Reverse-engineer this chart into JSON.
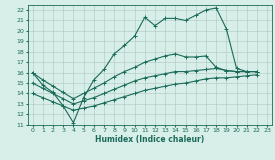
{
  "xlabel": "Humidex (Indice chaleur)",
  "xlim": [
    -0.5,
    23.5
  ],
  "ylim": [
    11,
    22.5
  ],
  "xticks": [
    0,
    1,
    2,
    3,
    4,
    5,
    6,
    7,
    8,
    9,
    10,
    11,
    12,
    13,
    14,
    15,
    16,
    17,
    18,
    19,
    20,
    21,
    22,
    23
  ],
  "yticks": [
    11,
    12,
    13,
    14,
    15,
    16,
    17,
    18,
    19,
    20,
    21,
    22
  ],
  "line_color": "#1a6b5a",
  "bg_color": "#d8eee8",
  "grid_color": "#adc8c0",
  "line1_x": [
    0,
    1,
    2,
    3,
    4,
    5,
    6,
    7,
    8,
    9,
    10,
    11,
    12,
    13,
    14,
    15,
    16,
    17,
    18,
    19,
    20,
    21,
    22
  ],
  "line1_y": [
    16.0,
    14.8,
    14.1,
    12.8,
    11.2,
    13.6,
    15.3,
    16.3,
    17.8,
    18.6,
    19.5,
    21.3,
    20.5,
    21.2,
    21.2,
    21.0,
    21.5,
    22.0,
    22.2,
    20.2,
    16.4,
    16.1,
    16.1
  ],
  "line2_x": [
    0,
    1,
    2,
    3,
    4,
    5,
    6,
    7,
    8,
    9,
    10,
    11,
    12,
    13,
    14,
    15,
    16,
    17,
    18,
    19,
    20,
    21,
    22
  ],
  "line2_y": [
    16.0,
    15.3,
    14.7,
    14.1,
    13.5,
    14.0,
    14.5,
    15.0,
    15.6,
    16.1,
    16.5,
    17.0,
    17.3,
    17.6,
    17.8,
    17.5,
    17.5,
    17.6,
    16.5,
    16.2,
    16.1,
    16.1,
    16.1
  ],
  "line3_x": [
    0,
    1,
    2,
    3,
    4,
    5,
    6,
    7,
    8,
    9,
    10,
    11,
    12,
    13,
    14,
    15,
    16,
    17,
    18,
    19,
    20,
    21,
    22
  ],
  "line3_y": [
    15.0,
    14.5,
    14.0,
    13.5,
    13.0,
    13.3,
    13.6,
    14.0,
    14.4,
    14.8,
    15.2,
    15.5,
    15.7,
    15.9,
    16.1,
    16.1,
    16.2,
    16.3,
    16.4,
    16.2,
    16.1,
    16.1,
    16.1
  ],
  "line4_x": [
    0,
    1,
    2,
    3,
    4,
    5,
    6,
    7,
    8,
    9,
    10,
    11,
    12,
    13,
    14,
    15,
    16,
    17,
    18,
    19,
    20,
    21,
    22
  ],
  "line4_y": [
    14.0,
    13.6,
    13.2,
    12.8,
    12.4,
    12.6,
    12.8,
    13.1,
    13.4,
    13.7,
    14.0,
    14.3,
    14.5,
    14.7,
    14.9,
    15.0,
    15.2,
    15.4,
    15.5,
    15.5,
    15.6,
    15.7,
    15.8
  ]
}
